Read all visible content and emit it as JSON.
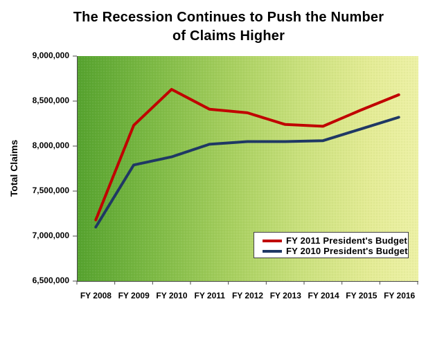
{
  "title": {
    "line1": "The Recession Continues to Push the Number",
    "line2": "of Claims Higher"
  },
  "chart_data": {
    "type": "line",
    "title": "The Recession Continues to Push the Number of Claims Higher",
    "xlabel": "",
    "ylabel": "Total Claims",
    "categories": [
      "FY 2008",
      "FY 2009",
      "FY 2010",
      "FY 2011",
      "FY 2012",
      "FY 2013",
      "FY 2014",
      "FY 2015",
      "FY 2016"
    ],
    "series": [
      {
        "name": "FY 2011 President's Budget",
        "color": "#C00000",
        "values": [
          7180000,
          8230000,
          8630000,
          8410000,
          8370000,
          8240000,
          8220000,
          8400000,
          8570000
        ]
      },
      {
        "name": "FY 2010 President's Budget",
        "color": "#1F3864",
        "values": [
          7100000,
          7790000,
          7880000,
          8020000,
          8050000,
          8050000,
          8060000,
          8190000,
          8320000
        ]
      }
    ],
    "ylim": [
      6500000,
      9000000
    ],
    "y_tick_step": 500000,
    "y_tick_labels": [
      "6,500,000",
      "7,000,000",
      "7,500,000",
      "8,000,000",
      "8,500,000",
      "9,000,000"
    ],
    "grid": false,
    "legend_position": "inside-bottom-right",
    "plot_background_gradient": [
      "#55A22E",
      "#BFDC74",
      "#EBF0A3"
    ],
    "axis_color": "#4a4a4a"
  }
}
